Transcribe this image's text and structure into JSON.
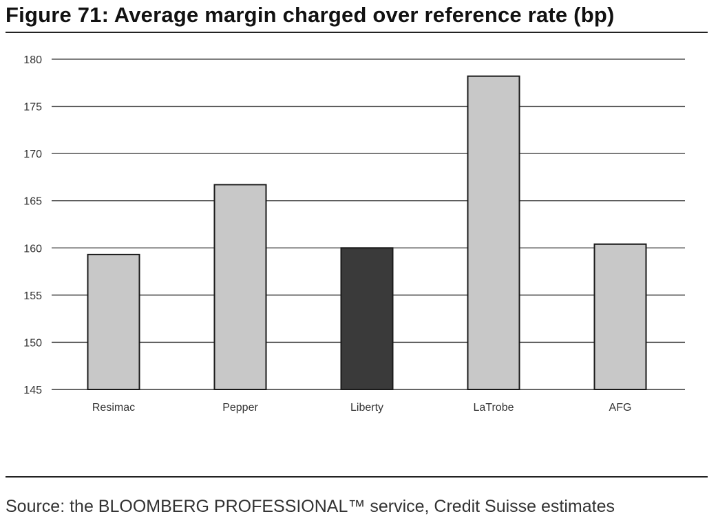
{
  "figure": {
    "title": "Figure 71:  Average margin charged over reference rate (bp)",
    "source": "Source: the BLOOMBERG PROFESSIONAL™ service, Credit Suisse estimates"
  },
  "chart_data": {
    "type": "bar",
    "title": "Average margin charged over reference rate (bp)",
    "xlabel": "",
    "ylabel": "",
    "categories": [
      "Resimac",
      "Pepper",
      "Liberty",
      "LaTrobe",
      "AFG"
    ],
    "values": [
      159.3,
      166.7,
      160.0,
      178.2,
      160.4
    ],
    "ylim": [
      145,
      180
    ],
    "yticks": [
      145,
      150,
      155,
      160,
      165,
      170,
      175,
      180
    ],
    "grid": true,
    "legend": "none",
    "bar_colors": [
      "#c8c8c8",
      "#c8c8c8",
      "#3a3a3a",
      "#c8c8c8",
      "#c8c8c8"
    ],
    "bar_outline": "#1a1a1a",
    "grid_color": "#333333"
  }
}
